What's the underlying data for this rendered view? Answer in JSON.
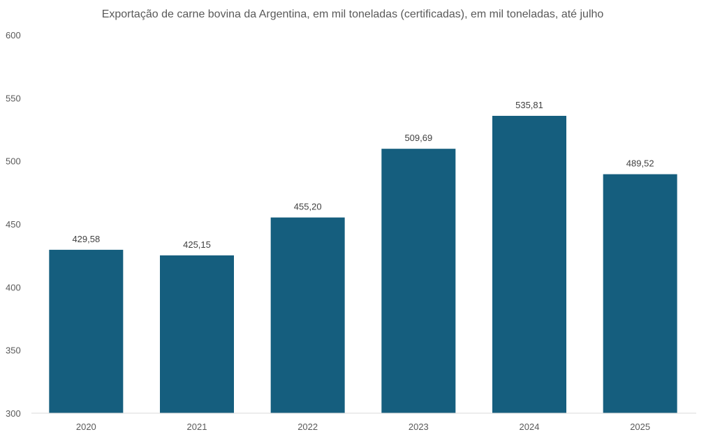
{
  "chart_data": {
    "type": "bar",
    "title": "Exportação de carne bovina da Argentina, em mil toneladas (certificadas), em mil toneladas, até julho",
    "categories": [
      "2020",
      "2021",
      "2022",
      "2023",
      "2024",
      "2025"
    ],
    "values": [
      429.58,
      425.15,
      455.2,
      509.69,
      535.81,
      489.52
    ],
    "data_labels": [
      "429,58",
      "425,15",
      "455,20",
      "509,69",
      "535,81",
      "489,52"
    ],
    "xlabel": "",
    "ylabel": "",
    "ylim": [
      300,
      600
    ],
    "yticks": [
      "300",
      "350",
      "400",
      "450",
      "500",
      "550",
      "600"
    ],
    "grid": false,
    "bar_color": "#155e7e"
  }
}
